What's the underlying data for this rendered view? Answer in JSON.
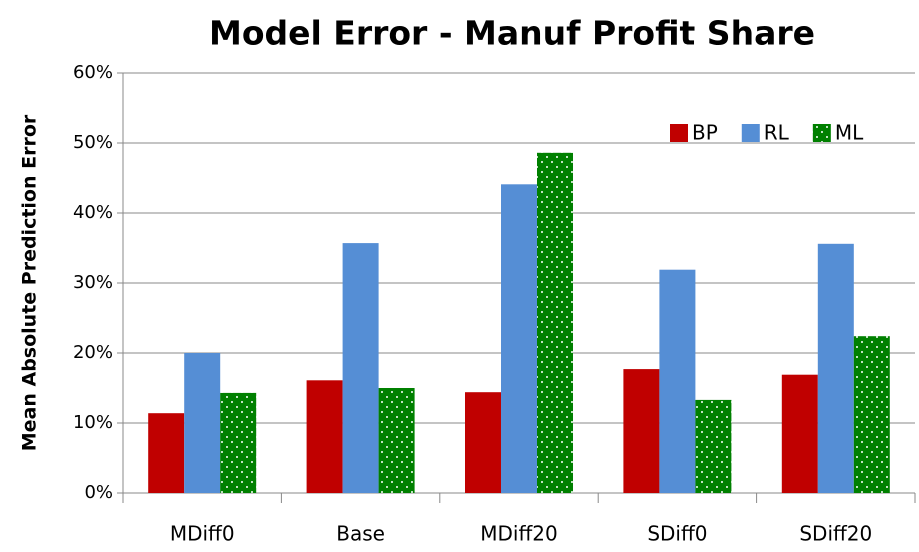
{
  "chart_data": {
    "type": "bar",
    "title": "Model Error - Manuf Profit Share",
    "y_label": "Mean Absolute Prediction Error",
    "categories": [
      "MDiff0",
      "Base",
      "MDiff20",
      "SDiff0",
      "SDiff20"
    ],
    "series": [
      {
        "name": "BP",
        "color": "#c00000",
        "values": [
          11.4,
          16.1,
          14.4,
          17.7,
          16.9
        ]
      },
      {
        "name": "RL",
        "color": "#558ed5",
        "values": [
          20.0,
          35.7,
          44.1,
          31.9,
          35.6
        ]
      },
      {
        "name": "ML",
        "color": "#008000",
        "pattern": "dots",
        "values": [
          14.3,
          15.0,
          48.6,
          13.3,
          22.4
        ]
      }
    ],
    "ylim": [
      0,
      60
    ],
    "yticks": [
      {
        "value": 0,
        "label": "0%"
      },
      {
        "value": 10,
        "label": "10%"
      },
      {
        "value": 20,
        "label": "20%"
      },
      {
        "value": 30,
        "label": "30%"
      },
      {
        "value": 40,
        "label": "40%"
      },
      {
        "value": 50,
        "label": "50%"
      },
      {
        "value": 60,
        "label": "60%"
      }
    ],
    "grid": true,
    "legend": "upper right"
  }
}
